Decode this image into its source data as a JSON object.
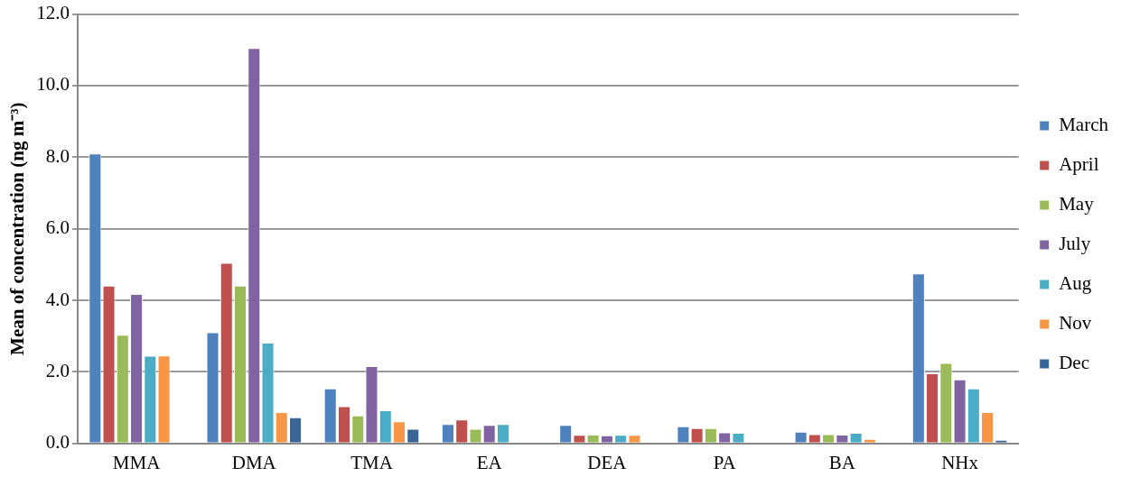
{
  "chart_data": {
    "type": "bar",
    "ylabel": "Mean of concentration (ng m⁻³)",
    "categories": [
      "MMA",
      "DMA",
      "TMA",
      "EA",
      "DEA",
      "PA",
      "BA",
      "NHx"
    ],
    "ylim": [
      0,
      12
    ],
    "yticks": [
      {
        "value": 0,
        "label": "0.0"
      },
      {
        "value": 2,
        "label": "2.0"
      },
      {
        "value": 4,
        "label": "4.0"
      },
      {
        "value": 6,
        "label": "6.0"
      },
      {
        "value": 8,
        "label": "8.0"
      },
      {
        "value": 10,
        "label": "10.0"
      },
      {
        "value": 12,
        "label": "12.0"
      }
    ],
    "grid": "y",
    "legend": "right",
    "series": [
      {
        "name": "March",
        "color": "#4f81bd",
        "values": [
          8.1,
          3.11,
          1.54,
          0.54,
          0.52,
          0.48,
          0.33,
          4.75
        ]
      },
      {
        "name": "April",
        "color": "#c0504d",
        "values": [
          4.41,
          5.05,
          1.04,
          0.67,
          0.24,
          0.43,
          0.26,
          1.96
        ]
      },
      {
        "name": "May",
        "color": "#9bbb59",
        "values": [
          3.04,
          4.41,
          0.78,
          0.41,
          0.25,
          0.43,
          0.26,
          2.25
        ]
      },
      {
        "name": "July",
        "color": "#8064a2",
        "values": [
          4.18,
          11.05,
          2.16,
          0.52,
          0.23,
          0.31,
          0.25,
          1.79
        ]
      },
      {
        "name": "Aug",
        "color": "#4bacc6",
        "values": [
          2.45,
          2.82,
          0.93,
          0.54,
          0.24,
          0.3,
          0.3,
          1.54
        ]
      },
      {
        "name": "Nov",
        "color": "#f79646",
        "values": [
          2.46,
          0.88,
          0.62,
          null,
          0.24,
          null,
          0.13,
          0.88
        ]
      },
      {
        "name": "Dec",
        "color": "#3b6496",
        "values": [
          null,
          0.73,
          0.41,
          null,
          null,
          null,
          null,
          0.1
        ]
      }
    ]
  }
}
